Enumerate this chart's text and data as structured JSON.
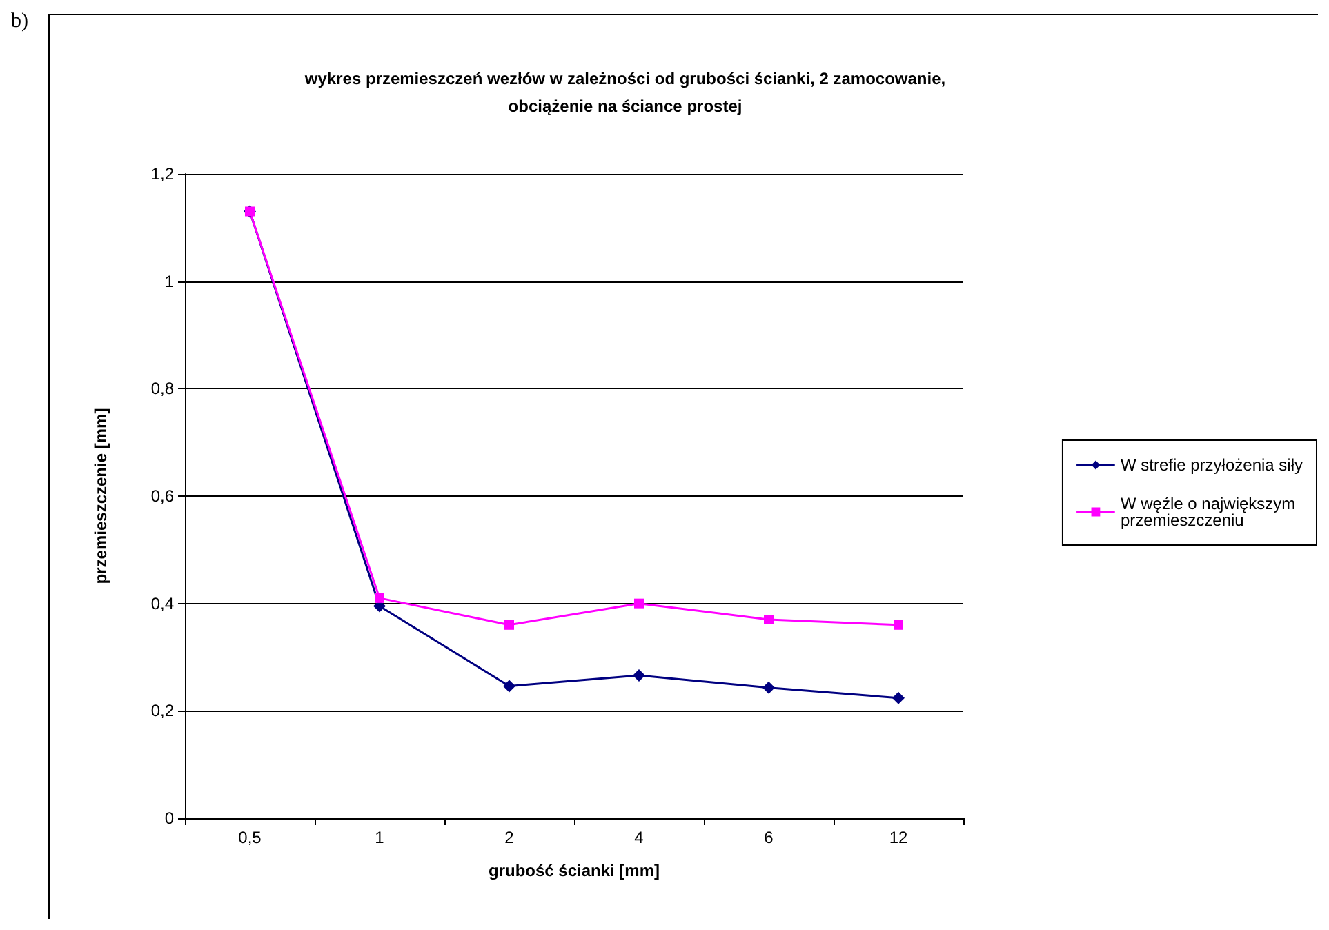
{
  "chart_data": {
    "type": "line",
    "title": "wykres przemieszczeń wezłów w zależności od grubości ścianki, 2 zamocowanie,\nobciążenie na ściance prostej",
    "xlabel": "grubość ścianki [mm]",
    "ylabel": "przemieszczenie [mm]",
    "annotations": [
      "b)"
    ],
    "categories": [
      "0,5",
      "1",
      "2",
      "4",
      "6",
      "12"
    ],
    "series": [
      {
        "name": "W strefie przyłożenia siły",
        "color": "#000080",
        "marker": "diamond",
        "values": [
          1.13,
          0.395,
          0.246,
          0.266,
          0.243,
          0.224
        ]
      },
      {
        "name": "W węźle o największym przemieszczeniu",
        "color": "#ff00ff",
        "marker": "square",
        "values": [
          1.13,
          0.41,
          0.36,
          0.4,
          0.37,
          0.36
        ]
      }
    ],
    "ylim": [
      0,
      1.2
    ],
    "yticks": [
      {
        "value": 0,
        "label": "0"
      },
      {
        "value": 0.2,
        "label": "0,2"
      },
      {
        "value": 0.4,
        "label": "0,4"
      },
      {
        "value": 0.6,
        "label": "0,6"
      },
      {
        "value": 0.8,
        "label": "0,8"
      },
      {
        "value": 1,
        "label": "1"
      },
      {
        "value": 1.2,
        "label": "1,2"
      }
    ],
    "grid": "y",
    "legend": "right",
    "line_style": "solid"
  }
}
